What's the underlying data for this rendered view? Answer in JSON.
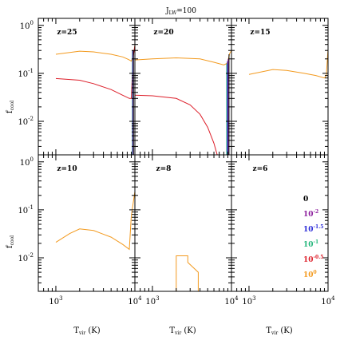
{
  "chart_data": {
    "type": "line",
    "title": {
      "main": "J",
      "sub": "LW",
      "suffix": "=100"
    },
    "xlabel": {
      "main": "T",
      "sub": "vir",
      "suffix": " (K)"
    },
    "ylabel": {
      "main": "f",
      "sub": "cool"
    },
    "x_scale": "log",
    "y_scale": "log",
    "xlim": [
      600,
      10000
    ],
    "ylim": [
      0.002,
      1.4
    ],
    "x_ticks": [
      {
        "value": 1000,
        "base": "10",
        "exp": "3"
      },
      {
        "value": 10000,
        "base": "10",
        "exp": "4"
      }
    ],
    "y_ticks": [
      {
        "value": 1,
        "base": "10",
        "exp": "0"
      },
      {
        "value": 0.1,
        "base": "10",
        "exp": "-1"
      },
      {
        "value": 0.01,
        "base": "10",
        "exp": "-2"
      }
    ],
    "panels": [
      {
        "label": "z=25",
        "series": [
          {
            "legend_index": 5,
            "x": [
              1000,
              2000,
              3000,
              5000,
              7000,
              8000,
              8500,
              9000,
              9500,
              10000
            ],
            "y": [
              0.25,
              0.29,
              0.28,
              0.25,
              0.22,
              0.2,
              0.19,
              0.18,
              0.22,
              0.38
            ]
          },
          {
            "legend_index": 4,
            "x": [
              1000,
              2000,
              3000,
              5000,
              7000,
              8500,
              9000,
              9500,
              10000
            ],
            "y": [
              0.078,
              0.072,
              0.061,
              0.046,
              0.035,
              0.03,
              0.03,
              0.22,
              0.38
            ]
          },
          {
            "legend_index": 3,
            "x": [
              9300,
              9300,
              9300
            ],
            "y": [
              0.002,
              0.2,
              0.3
            ]
          },
          {
            "legend_index": 2,
            "x": [
              9400,
              9400
            ],
            "y": [
              0.002,
              0.3
            ]
          },
          {
            "legend_index": 1,
            "x": [
              9500,
              9500
            ],
            "y": [
              0.002,
              0.3
            ]
          },
          {
            "legend_index": 0,
            "x": [
              9600,
              9600
            ],
            "y": [
              0.002,
              0.3
            ]
          }
        ]
      },
      {
        "label": "z=20",
        "series": [
          {
            "legend_index": 5,
            "x": [
              600,
              1000,
              2000,
              4000,
              6000,
              8000,
              8700,
              9000,
              9500,
              10000
            ],
            "y": [
              0.19,
              0.2,
              0.21,
              0.2,
              0.17,
              0.15,
              0.16,
              0.18,
              0.26,
              0.3
            ]
          },
          {
            "legend_index": 4,
            "x": [
              600,
              1000,
              2000,
              3000,
              4000,
              5000,
              6000,
              6600,
              6600
            ],
            "y": [
              0.035,
              0.034,
              0.03,
              0.022,
              0.014,
              0.0075,
              0.0035,
              0.002,
              0.0019
            ]
          },
          {
            "legend_index": 3,
            "x": [
              8700,
              8700
            ],
            "y": [
              0.002,
              0.16
            ]
          },
          {
            "legend_index": 2,
            "x": [
              8900,
              8900
            ],
            "y": [
              0.002,
              0.18
            ]
          },
          {
            "legend_index": 1,
            "x": [
              9100,
              9100
            ],
            "y": [
              0.002,
              0.2
            ]
          },
          {
            "legend_index": 0,
            "x": [
              9300,
              9300
            ],
            "y": [
              0.002,
              0.25
            ]
          }
        ]
      },
      {
        "label": "z=15",
        "series": [
          {
            "legend_index": 5,
            "x": [
              1000,
              2000,
              3000,
              5000,
              7000,
              9000,
              9500,
              10000
            ],
            "y": [
              0.095,
              0.12,
              0.115,
              0.1,
              0.09,
              0.08,
              0.09,
              0.32
            ]
          }
        ]
      },
      {
        "label": "z=10",
        "series": [
          {
            "legend_index": 5,
            "x": [
              1000,
              1500,
              2000,
              3000,
              5000,
              7000,
              8500,
              9000,
              10000
            ],
            "y": [
              0.021,
              0.032,
              0.04,
              0.037,
              0.027,
              0.019,
              0.015,
              0.075,
              0.24
            ]
          }
        ]
      },
      {
        "label": "z=8",
        "series": [
          {
            "legend_index": 5,
            "x": [
              2000,
              2000,
              2800,
              2800,
              3800,
              3800
            ],
            "y": [
              0.0015,
              0.011,
              0.011,
              0.008,
              0.005,
              0.0015
            ]
          }
        ]
      },
      {
        "label": "z=6",
        "series": []
      }
    ],
    "legend": {
      "placement": "inside lower-right of z=6 panel",
      "items": [
        {
          "base": "0",
          "exp": "",
          "color": "#000000"
        },
        {
          "base": "10",
          "exp": "-2",
          "color": "#8b1c9c"
        },
        {
          "base": "10",
          "exp": "-1.5",
          "color": "#2a2ad8"
        },
        {
          "base": "10",
          "exp": "-1",
          "color": "#22b57a"
        },
        {
          "base": "10",
          "exp": "-0.5",
          "color": "#dd1f2a"
        },
        {
          "base": "10",
          "exp": "0",
          "color": "#f39a1e"
        }
      ]
    }
  }
}
